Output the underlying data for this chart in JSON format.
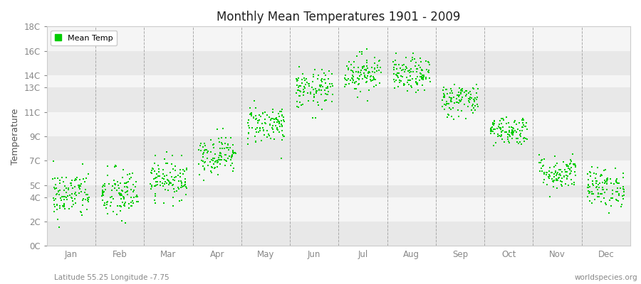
{
  "title": "Monthly Mean Temperatures 1901 - 2009",
  "ylabel": "Temperature",
  "subtitle_left": "Latitude 55.25 Longitude -7.75",
  "subtitle_right": "worldspecies.org",
  "legend_label": "Mean Temp",
  "bg_color": "#ffffff",
  "plot_bg_color": "#ffffff",
  "point_color": "#00cc00",
  "point_size": 3,
  "ytick_labels": [
    "0C",
    "2C",
    "4C",
    "5C",
    "7C",
    "9C",
    "11C",
    "13C",
    "14C",
    "16C",
    "18C"
  ],
  "ytick_values": [
    0,
    2,
    4,
    5,
    7,
    9,
    11,
    13,
    14,
    16,
    18
  ],
  "ylim": [
    0,
    18
  ],
  "month_names": [
    "Jan",
    "Feb",
    "Mar",
    "Apr",
    "May",
    "Jun",
    "Jul",
    "Aug",
    "Sep",
    "Oct",
    "Nov",
    "Dec"
  ],
  "monthly_means": [
    4.2,
    4.2,
    5.5,
    7.5,
    10.0,
    12.8,
    14.2,
    14.0,
    12.0,
    9.5,
    6.0,
    4.8
  ],
  "monthly_stds": [
    1.0,
    1.1,
    0.8,
    0.8,
    0.8,
    0.8,
    0.8,
    0.7,
    0.7,
    0.6,
    0.7,
    0.8
  ],
  "n_years": 109,
  "seed": 42,
  "band_colors": [
    "#e8e8e8",
    "#f5f5f5"
  ],
  "vline_color": "#aaaaaa",
  "spine_color": "#cccccc",
  "tick_color": "#888888",
  "label_color": "#555555",
  "title_color": "#222222",
  "footer_color": "#888888"
}
